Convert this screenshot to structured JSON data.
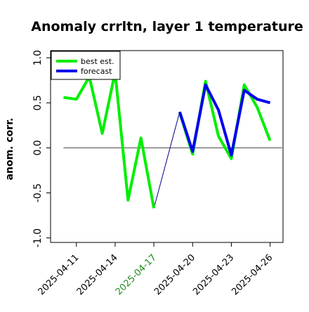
{
  "chart_data": {
    "type": "line",
    "title": "Anomaly crrltn, layer 1 temperature",
    "ylabel": "anom. corr.",
    "xlabel": "",
    "ylim": [
      -1.05,
      1.08
    ],
    "yticks": [
      -1.0,
      -0.5,
      0.0,
      0.5,
      1.0
    ],
    "ytick_labels": [
      "-1.0",
      "-0.5",
      "0.0",
      "0.5",
      "1.0"
    ],
    "x_start": "2025-04-09",
    "x_end": "2025-04-27",
    "xticks": [
      "2025-04-11",
      "2025-04-14",
      "2025-04-17",
      "2025-04-20",
      "2025-04-23",
      "2025-04-26"
    ],
    "xtick_labels": [
      "2025-04-11",
      "2025-04-14",
      "2025-04-17",
      "2025-04-20",
      "2025-04-23",
      "2025-04-26"
    ],
    "highlight_tick": "2025-04-17",
    "highlight_color": "#228b22",
    "zero_line": 0.0,
    "grid": false,
    "legend_position": "top-left",
    "series": [
      {
        "name": "best est.",
        "color": "#00ee00",
        "points": [
          {
            "x": "2025-04-10",
            "y": 0.56
          },
          {
            "x": "2025-04-11",
            "y": 0.54
          },
          {
            "x": "2025-04-12",
            "y": 0.79
          },
          {
            "x": "2025-04-13",
            "y": 0.16
          },
          {
            "x": "2025-04-14",
            "y": 0.84
          },
          {
            "x": "2025-04-15",
            "y": -0.58
          },
          {
            "x": "2025-04-16",
            "y": 0.11
          },
          {
            "x": "2025-04-17",
            "y": -0.67
          },
          {
            "x": "2025-04-18",
            "y": null
          },
          {
            "x": "2025-04-19",
            "y": 0.39
          },
          {
            "x": "2025-04-20",
            "y": -0.07
          },
          {
            "x": "2025-04-21",
            "y": 0.74
          },
          {
            "x": "2025-04-22",
            "y": 0.13
          },
          {
            "x": "2025-04-23",
            "y": -0.12
          },
          {
            "x": "2025-04-24",
            "y": 0.7
          },
          {
            "x": "2025-04-25",
            "y": 0.45
          },
          {
            "x": "2025-04-26",
            "y": 0.08
          }
        ]
      },
      {
        "name": "forecast",
        "color": "#0000ee",
        "points": [
          {
            "x": "2025-04-19",
            "y": 0.4
          },
          {
            "x": "2025-04-20",
            "y": -0.04
          },
          {
            "x": "2025-04-21",
            "y": 0.7
          },
          {
            "x": "2025-04-22",
            "y": 0.42
          },
          {
            "x": "2025-04-23",
            "y": -0.08
          },
          {
            "x": "2025-04-24",
            "y": 0.64
          },
          {
            "x": "2025-04-25",
            "y": 0.54
          },
          {
            "x": "2025-04-26",
            "y": 0.5
          }
        ]
      }
    ],
    "connector": {
      "color": "#00008b",
      "from": {
        "x": "2025-04-17",
        "y": -0.67
      },
      "to": {
        "x": "2025-04-19",
        "y": 0.4
      }
    }
  }
}
